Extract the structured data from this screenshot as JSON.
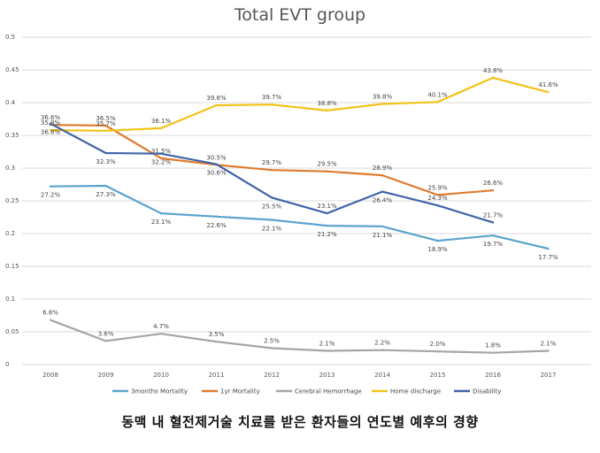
{
  "caption": "동맥 내 혈전제거술 치료를 받은 환자들의 연도별 예후의 경향",
  "chart_data": {
    "type": "line",
    "title": "Total EVT group",
    "xlabel": "",
    "ylabel": "",
    "categories": [
      "2008",
      "2009",
      "2010",
      "2011",
      "2012",
      "2013",
      "2014",
      "2015",
      "2016",
      "2017"
    ],
    "ylim": [
      0,
      0.5
    ],
    "yticks": [
      "0",
      "0.05",
      "0.1",
      "0.15",
      "0.2",
      "0.25",
      "0.3",
      "0.35",
      "0.4",
      "0.45",
      "0.5"
    ],
    "grid": true,
    "legend_position": "bottom",
    "series": [
      {
        "name": "3months Mortality",
        "color": "#5ba3cf",
        "values": [
          0.272,
          0.273,
          0.231,
          0.226,
          0.221,
          0.212,
          0.211,
          0.189,
          0.197,
          0.177
        ],
        "labels": [
          "27.2%",
          "27.3%",
          "23.1%",
          "22.6%",
          "22.1%",
          "21.2%",
          "21.1%",
          "18.9%",
          "19.7%",
          "17.7%"
        ],
        "label_side": [
          "below",
          "below",
          "below",
          "below",
          "below",
          "below",
          "below",
          "below",
          "below",
          "below"
        ]
      },
      {
        "name": "1yr Mortality",
        "color": "#e07b2e",
        "values": [
          0.366,
          0.365,
          0.315,
          0.305,
          0.297,
          0.295,
          0.289,
          0.259,
          0.266,
          null
        ],
        "labels": [
          "36.6%",
          "36.5%",
          "31.5%",
          "30.5%",
          "29.7%",
          "29.5%",
          "28.9%",
          "25.9%",
          "26.6%",
          ""
        ],
        "label_side": [
          "above",
          "above",
          "above",
          "above",
          "above",
          "above",
          "above",
          "above",
          "above",
          "above"
        ]
      },
      {
        "name": "Cerebral Hemorrhage",
        "color": "#a5a5a5",
        "values": [
          0.068,
          0.036,
          0.047,
          0.035,
          0.025,
          0.021,
          0.022,
          0.02,
          0.018,
          0.021
        ],
        "labels": [
          "6.8%",
          "3.6%",
          "4.7%",
          "3.5%",
          "2.5%",
          "2.1%",
          "2.2%",
          "2.0%",
          "1.8%",
          "2.1%"
        ],
        "label_side": [
          "above",
          "above",
          "above",
          "above",
          "above",
          "above",
          "above",
          "above",
          "above",
          "above"
        ]
      },
      {
        "name": "Home discharge",
        "color": "#f2c218",
        "values": [
          0.358,
          0.357,
          0.361,
          0.396,
          0.397,
          0.388,
          0.398,
          0.401,
          0.438,
          0.416
        ],
        "labels": [
          "35.8%",
          "35.7%",
          "36.1%",
          "39.6%",
          "39.7%",
          "38.8%",
          "39.8%",
          "40.1%",
          "43.8%",
          "41.6%"
        ],
        "label_side": [
          "above",
          "above",
          "above",
          "above",
          "above",
          "above",
          "above",
          "above",
          "above",
          "above"
        ]
      },
      {
        "name": "Disability",
        "color": "#3f64a8",
        "values": [
          0.368,
          0.323,
          0.322,
          0.306,
          0.255,
          0.231,
          0.264,
          0.243,
          0.217,
          null
        ],
        "labels": [
          "36.8%",
          "32.3%",
          "32.2%",
          "30.6%",
          "25.5%",
          "23.1%",
          "26.4%",
          "24.3%",
          "21.7%",
          ""
        ],
        "label_side": [
          "below",
          "below",
          "below",
          "below",
          "below",
          "above",
          "below",
          "above",
          "above",
          "below"
        ]
      }
    ]
  }
}
